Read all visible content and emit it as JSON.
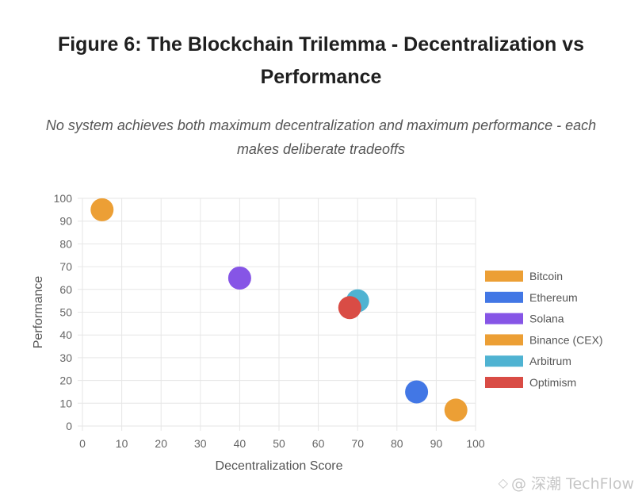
{
  "title_line1": "Figure 6: The Blockchain Trilemma - Decentralization vs",
  "title_line2": "Performance",
  "subtitle_line1": "No system achieves both maximum decentralization and maximum performance - each",
  "subtitle_line2": "makes deliberate tradeoffs",
  "watermark": "@ 深潮 TechFlow",
  "watermark_icon": "diamond-logo-icon",
  "chart_data": {
    "type": "scatter",
    "xlabel": "Decentralization Score",
    "ylabel": "Performance",
    "xlim": [
      0,
      100
    ],
    "ylim": [
      0,
      100
    ],
    "xticks": [
      0,
      10,
      20,
      30,
      40,
      50,
      60,
      70,
      80,
      90,
      100
    ],
    "yticks": [
      0,
      10,
      20,
      30,
      40,
      50,
      60,
      70,
      80,
      90,
      100
    ],
    "grid": true,
    "legend_position": "right",
    "series": [
      {
        "name": "Bitcoin",
        "color": "#ec9f35",
        "x": 95,
        "y": 7
      },
      {
        "name": "Ethereum",
        "color": "#4277e5",
        "x": 85,
        "y": 15
      },
      {
        "name": "Solana",
        "color": "#8655e6",
        "x": 40,
        "y": 65
      },
      {
        "name": "Binance (CEX)",
        "color": "#ec9f35",
        "x": 5,
        "y": 95
      },
      {
        "name": "Arbitrum",
        "color": "#4fb3d2",
        "x": 70,
        "y": 55
      },
      {
        "name": "Optimism",
        "color": "#d94c45",
        "x": 68,
        "y": 52
      }
    ]
  }
}
